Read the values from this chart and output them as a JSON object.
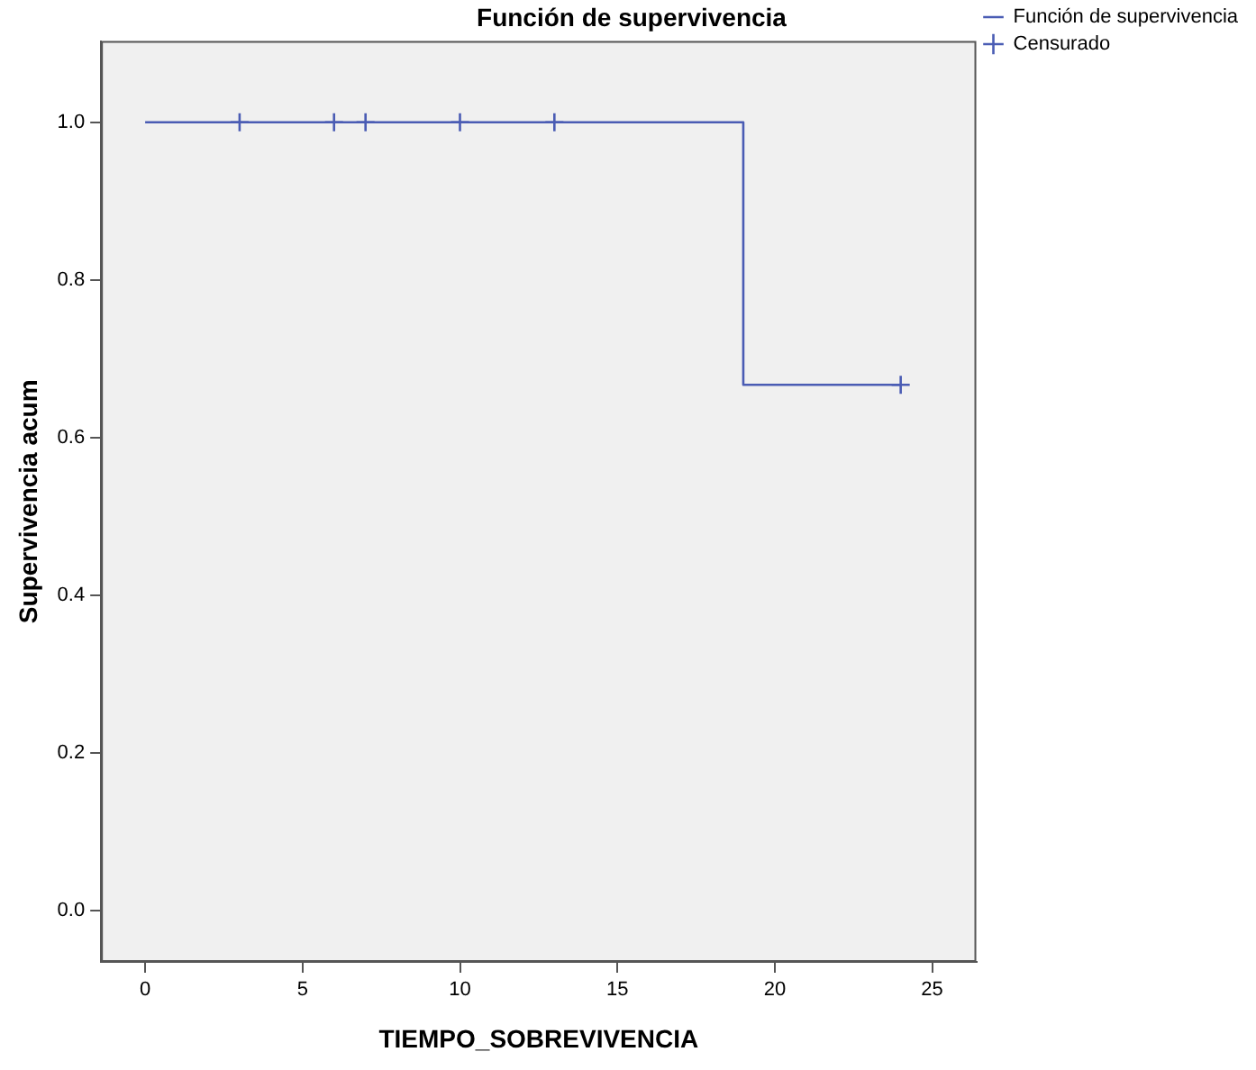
{
  "chart_data": {
    "type": "step",
    "title": "Función de supervivencia",
    "xlabel": "TIEMPO_SOBREVIVENCIA",
    "ylabel": "Supervivencia acum",
    "series": [
      {
        "name": "Función de supervivencia",
        "color": "#4a5cb4",
        "x": [
          0,
          19,
          24
        ],
        "values": [
          1,
          0.667,
          0.667
        ],
        "marker": "none"
      },
      {
        "name": "Censurado",
        "type": "scatter",
        "color": "#4a5cb4",
        "x": [
          3,
          6,
          7,
          10,
          13,
          24
        ],
        "values": [
          1,
          1,
          1,
          1,
          1,
          0.667
        ],
        "marker": "cross"
      }
    ],
    "xlim": [
      -1.4,
      26.4
    ],
    "xticks": [
      0,
      5,
      10,
      15,
      20,
      25
    ],
    "ylim": [
      -0.065,
      1.103
    ],
    "yticks": [
      {
        "value": 0,
        "label": "0.0"
      },
      {
        "value": 0.2,
        "label": "0.2"
      },
      {
        "value": 0.4,
        "label": "0.4"
      },
      {
        "value": 0.6,
        "label": "0.6"
      },
      {
        "value": 0.8,
        "label": "0.8"
      },
      {
        "value": 1,
        "label": "1.0"
      }
    ],
    "grid": false,
    "legend": "top right",
    "line_style": "solid"
  }
}
